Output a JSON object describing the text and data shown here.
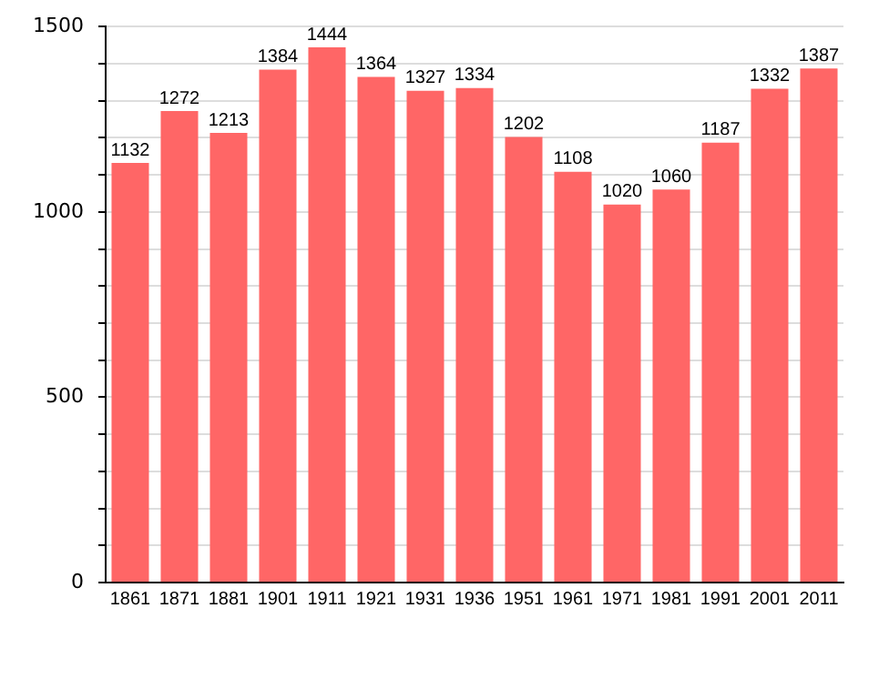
{
  "chart_data": {
    "type": "bar",
    "categories": [
      "1861",
      "1871",
      "1881",
      "1901",
      "1911",
      "1921",
      "1931",
      "1936",
      "1951",
      "1961",
      "1971",
      "1981",
      "1991",
      "2001",
      "2011"
    ],
    "values": [
      1132,
      1272,
      1213,
      1384,
      1444,
      1364,
      1327,
      1334,
      1202,
      1108,
      1020,
      1060,
      1187,
      1332,
      1387
    ],
    "color": "#ff6666",
    "ylim": [
      0,
      1500
    ],
    "yticks": [
      0,
      {
        "value": 100,
        "label": null
      },
      {
        "value": 200,
        "label": null
      },
      {
        "value": 300,
        "label": null
      },
      {
        "value": 400,
        "label": null
      },
      500,
      {
        "value": 600,
        "label": null
      },
      {
        "value": 700,
        "label": null
      },
      {
        "value": 800,
        "label": null
      },
      {
        "value": 900,
        "label": null
      },
      1000,
      {
        "value": 1100,
        "label": null
      },
      {
        "value": 1200,
        "label": null
      },
      {
        "value": 1300,
        "label": null
      },
      {
        "value": 1400,
        "label": null
      },
      1500
    ],
    "grid": "y",
    "data_labels": true,
    "legend": false
  }
}
